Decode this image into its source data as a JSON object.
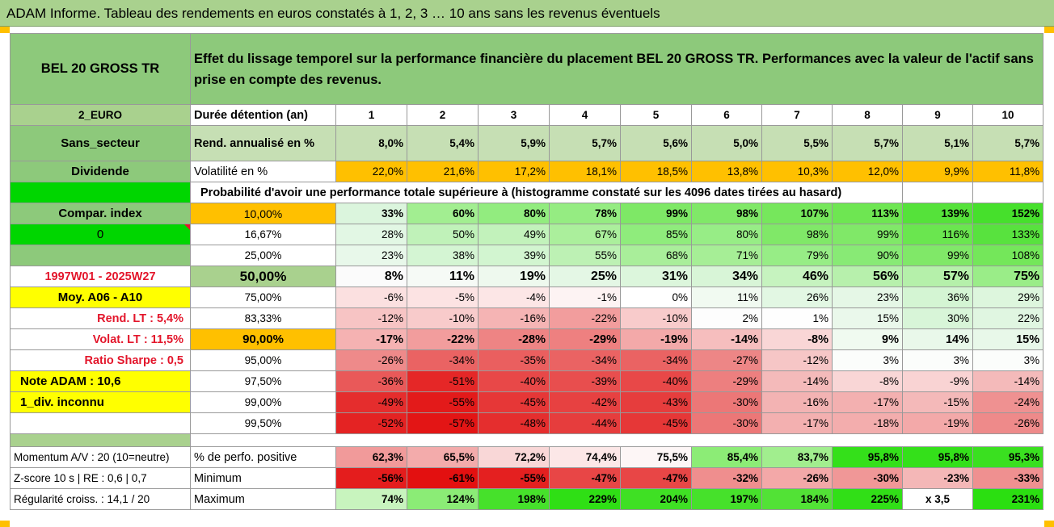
{
  "title": "ADAM Informe. Tableau des rendements en euros constatés à 1, 2, 3 … 10 ans sans les revenus éventuels",
  "asset_name": "BEL 20 GROSS TR",
  "description": "Effet du lissage temporel sur la performance financière du placement BEL 20 GROSS TR. Performances avec la valeur de l'actif sans prise en compte des revenus.",
  "left": {
    "currency": "2_EURO",
    "sector": "Sans_secteur",
    "dividend": "Dividende",
    "one": "1",
    "compar": "Compar. index",
    "zero": "0",
    "period": "1997W01 - 2025W27",
    "moy": "Moy. A06 - A10",
    "rend_lt": "Rend. LT :   5,4%",
    "volat_lt": "Volat. LT :   11,5%",
    "sharpe": "Ratio Sharpe :   0,5",
    "note": "Note ADAM : 10,6",
    "div": "1_div. inconnu"
  },
  "header": {
    "duration_label": "Durée détention (an)",
    "years": [
      "1",
      "2",
      "3",
      "4",
      "5",
      "6",
      "7",
      "8",
      "9",
      "10"
    ]
  },
  "rend": {
    "label": "Rend. annualisé en %",
    "values": [
      "8,0%",
      "5,4%",
      "5,9%",
      "5,7%",
      "5,6%",
      "5,0%",
      "5,5%",
      "5,7%",
      "5,1%",
      "5,7%"
    ]
  },
  "vol": {
    "label": "Volatilité en %",
    "values": [
      "22,0%",
      "21,6%",
      "17,2%",
      "18,1%",
      "18,5%",
      "13,8%",
      "10,3%",
      "12,0%",
      "9,9%",
      "11,8%"
    ]
  },
  "proba_label": "Probabilité d'avoir une performance totale supérieure à (histogramme constaté sur les 4096 dates tirées au hasard)",
  "distribution": [
    {
      "pct": "10,00%",
      "values": [
        "33%",
        "60%",
        "80%",
        "78%",
        "99%",
        "98%",
        "107%",
        "113%",
        "139%",
        "152%"
      ]
    },
    {
      "pct": "16,67%",
      "values": [
        "28%",
        "50%",
        "49%",
        "67%",
        "85%",
        "80%",
        "98%",
        "99%",
        "116%",
        "133%"
      ]
    },
    {
      "pct": "25,00%",
      "values": [
        "23%",
        "38%",
        "39%",
        "55%",
        "68%",
        "71%",
        "79%",
        "90%",
        "99%",
        "108%"
      ]
    },
    {
      "pct": "50,00%",
      "values": [
        "8%",
        "11%",
        "19%",
        "25%",
        "31%",
        "34%",
        "46%",
        "56%",
        "57%",
        "75%"
      ]
    },
    {
      "pct": "75,00%",
      "values": [
        "-6%",
        "-5%",
        "-4%",
        "-1%",
        "0%",
        "11%",
        "26%",
        "23%",
        "36%",
        "29%"
      ]
    },
    {
      "pct": "83,33%",
      "values": [
        "-12%",
        "-10%",
        "-16%",
        "-22%",
        "-10%",
        "2%",
        "1%",
        "15%",
        "30%",
        "22%"
      ]
    },
    {
      "pct": "90,00%",
      "values": [
        "-17%",
        "-22%",
        "-28%",
        "-29%",
        "-19%",
        "-14%",
        "-8%",
        "9%",
        "14%",
        "15%"
      ]
    },
    {
      "pct": "95,00%",
      "values": [
        "-26%",
        "-34%",
        "-35%",
        "-34%",
        "-34%",
        "-27%",
        "-12%",
        "3%",
        "3%",
        "3%"
      ]
    },
    {
      "pct": "97,50%",
      "values": [
        "-36%",
        "-51%",
        "-40%",
        "-39%",
        "-40%",
        "-29%",
        "-14%",
        "-8%",
        "-9%",
        "-14%"
      ]
    },
    {
      "pct": "99,00%",
      "values": [
        "-49%",
        "-55%",
        "-45%",
        "-42%",
        "-43%",
        "-30%",
        "-16%",
        "-17%",
        "-15%",
        "-24%"
      ]
    },
    {
      "pct": "99,50%",
      "values": [
        "-52%",
        "-57%",
        "-48%",
        "-44%",
        "-45%",
        "-30%",
        "-17%",
        "-18%",
        "-19%",
        "-26%"
      ]
    }
  ],
  "bottom": {
    "momentum": "Momentum A/V : 20 (10=neutre)",
    "zscore": "Z-score 10 s | RE : 0,6 | 0,7",
    "regular": "Régularité croiss. : 14,1 / 20",
    "positive": {
      "label": "% de perfo. positive",
      "values": [
        "62,3%",
        "65,5%",
        "72,2%",
        "74,4%",
        "75,5%",
        "85,4%",
        "83,7%",
        "95,8%",
        "95,8%",
        "95,3%"
      ]
    },
    "minimum": {
      "label": "Minimum",
      "values": [
        "-56%",
        "-61%",
        "-55%",
        "-47%",
        "-47%",
        "-32%",
        "-26%",
        "-30%",
        "-23%",
        "-33%"
      ]
    },
    "maximum": {
      "label": "Maximum",
      "values": [
        "74%",
        "124%",
        "198%",
        "229%",
        "204%",
        "197%",
        "184%",
        "225%",
        "x 3,5",
        "231%"
      ]
    }
  }
}
